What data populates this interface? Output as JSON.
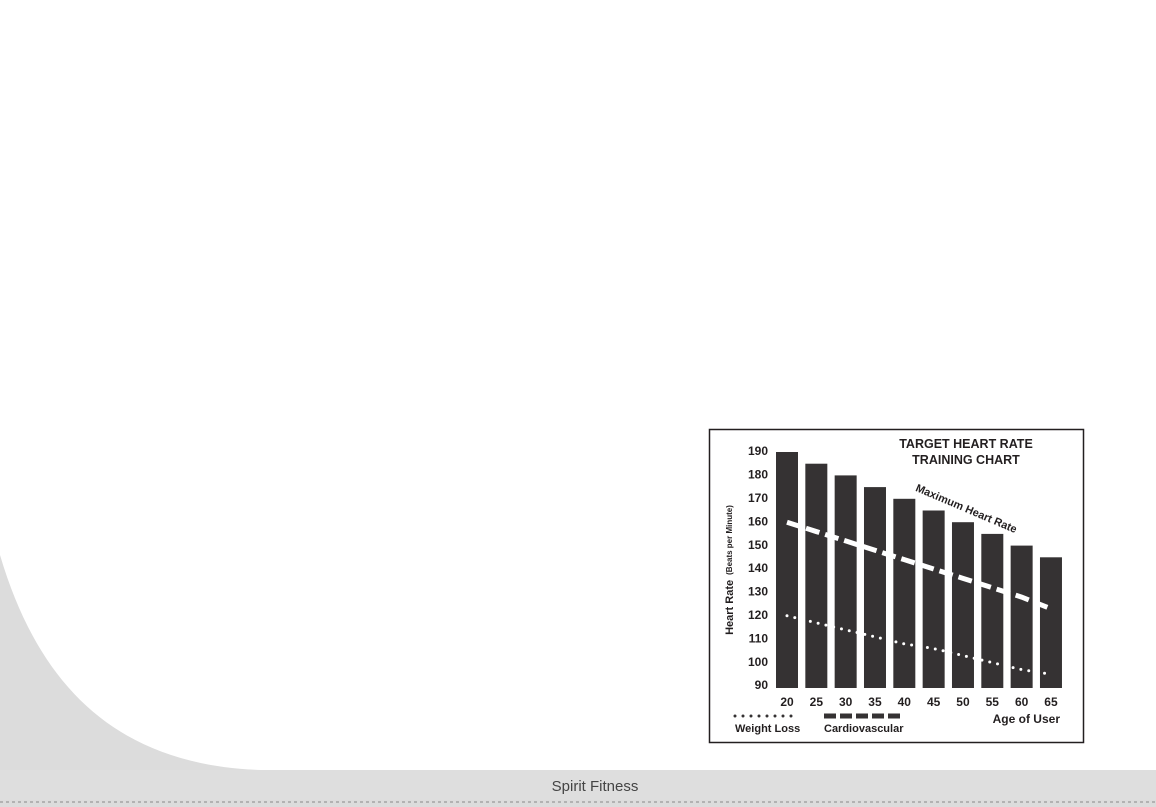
{
  "chart_data": {
    "type": "bar-line",
    "title": "TARGET HEART RATE TRAINING CHART",
    "ylabel": "Heart Rate",
    "ylabel_note": "(Beats per Minute)",
    "xlabel": "Age of User",
    "categories": [
      "20",
      "25",
      "30",
      "35",
      "40",
      "45",
      "50",
      "55",
      "60",
      "65"
    ],
    "series": [
      {
        "name": "Maximum Heart Rate",
        "kind": "bar",
        "color": "#353233",
        "values": [
          190,
          185,
          180,
          175,
          170,
          165,
          160,
          155,
          150,
          145
        ]
      },
      {
        "name": "Cardiovascular",
        "kind": "line",
        "style": "dashed",
        "color": "#ffffff",
        "values": [
          160,
          156,
          152,
          148,
          144,
          140,
          136,
          132,
          128,
          123
        ]
      },
      {
        "name": "Weight Loss",
        "kind": "line",
        "style": "dotted",
        "color": "#ffffff",
        "values": [
          120,
          117,
          114,
          111,
          108,
          106,
          103,
          100,
          97,
          95
        ]
      }
    ],
    "ylim": [
      90,
      190
    ],
    "yticks": [
      90,
      100,
      110,
      120,
      130,
      140,
      150,
      160,
      170,
      180,
      190
    ],
    "grid": false,
    "legend_color": "#353233"
  },
  "footer": {
    "text": "Spirit Fitness"
  }
}
